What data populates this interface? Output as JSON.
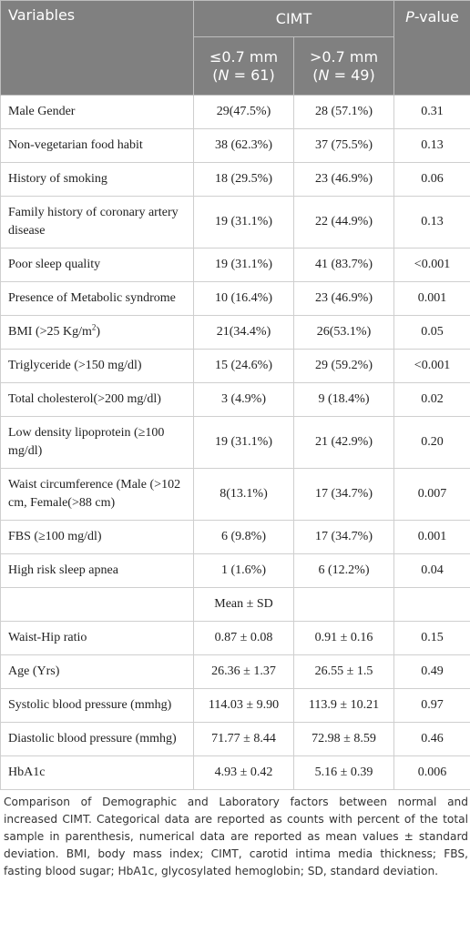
{
  "table": {
    "header": {
      "variables": "Variables",
      "group": "CIMT",
      "p_value": [
        "P",
        "-value"
      ],
      "low": {
        "label": "≤0.7 mm",
        "n": [
          "(",
          "N",
          " = 61)"
        ]
      },
      "high": {
        "label": ">0.7 mm",
        "n": [
          "(",
          "N",
          " = 49)"
        ]
      }
    },
    "rows": [
      {
        "variable": "Male Gender",
        "low": "29(47.5%)",
        "high": "28 (57.1%)",
        "p": "0.31"
      },
      {
        "variable": "Non-vegetarian food habit",
        "low": "38 (62.3%)",
        "high": "37 (75.5%)",
        "p": "0.13"
      },
      {
        "variable": "History of smoking",
        "low": "18 (29.5%)",
        "high": "23 (46.9%)",
        "p": "0.06"
      },
      {
        "variable": "Family history of coronary artery disease",
        "low": "19 (31.1%)",
        "high": "22 (44.9%)",
        "p": "0.13"
      },
      {
        "variable": "Poor sleep quality",
        "low": "19 (31.1%)",
        "high": "41 (83.7%)",
        "p": "<0.001"
      },
      {
        "variable": "Presence of Metabolic syndrome",
        "low": "10 (16.4%)",
        "high": "23 (46.9%)",
        "p": "0.001"
      },
      {
        "variable": [
          "BMI (>25 Kg/m",
          "2",
          ")"
        ],
        "low": "21(34.4%)",
        "high": "26(53.1%)",
        "p": "0.05"
      },
      {
        "variable": "Triglyceride (>150 mg/dl)",
        "low": "15 (24.6%)",
        "high": "29 (59.2%)",
        "p": "<0.001"
      },
      {
        "variable": "Total cholesterol(>200 mg/dl)",
        "low": "3 (4.9%)",
        "high": "9 (18.4%)",
        "p": "0.02"
      },
      {
        "variable": "Low density lipoprotein (≥100 mg/dl)",
        "low": "19 (31.1%)",
        "high": "21 (42.9%)",
        "p": "0.20"
      },
      {
        "variable": "Waist circumference (Male (>102 cm, Female(>88 cm)",
        "low": "8(13.1%)",
        "high": "17 (34.7%)",
        "p": "0.007"
      },
      {
        "variable": "FBS (≥100 mg/dl)",
        "low": "6 (9.8%)",
        "high": "17 (34.7%)",
        "p": "0.001"
      },
      {
        "variable": "High risk sleep apnea",
        "low": "1 (1.6%)",
        "high": "6 (12.2%)",
        "p": "0.04"
      },
      {
        "low": "Mean ± SD"
      },
      {
        "variable": "Waist-Hip ratio",
        "low": "0.87 ± 0.08",
        "high": "0.91 ± 0.16",
        "p": "0.15"
      },
      {
        "variable": "Age (Yrs)",
        "low": "26.36 ± 1.37",
        "high": "26.55 ± 1.5",
        "p": "0.49"
      },
      {
        "variable": "Systolic blood pressure (mmhg)",
        "low": "114.03 ± 9.90",
        "high": "113.9 ± 10.21",
        "p": "0.97"
      },
      {
        "variable": "Diastolic blood pressure (mmhg)",
        "low": "71.77 ± 8.44",
        "high": "72.98 ± 8.59",
        "p": "0.46"
      },
      {
        "variable": "HbA1c",
        "low": "4.93 ± 0.42",
        "high": "5.16 ± 0.39",
        "p": "0.006"
      }
    ],
    "footnote": "Comparison of Demographic and Laboratory factors between normal and increased CIMT. Categorical data are reported as counts with percent of the total sample in parenthesis, numerical data are reported as mean values ± standard deviation. BMI, body mass index; CIMT, carotid intima media thickness; FBS, fasting blood sugar; HbA1c, glycosylated hemoglobin; SD, standard deviation."
  }
}
